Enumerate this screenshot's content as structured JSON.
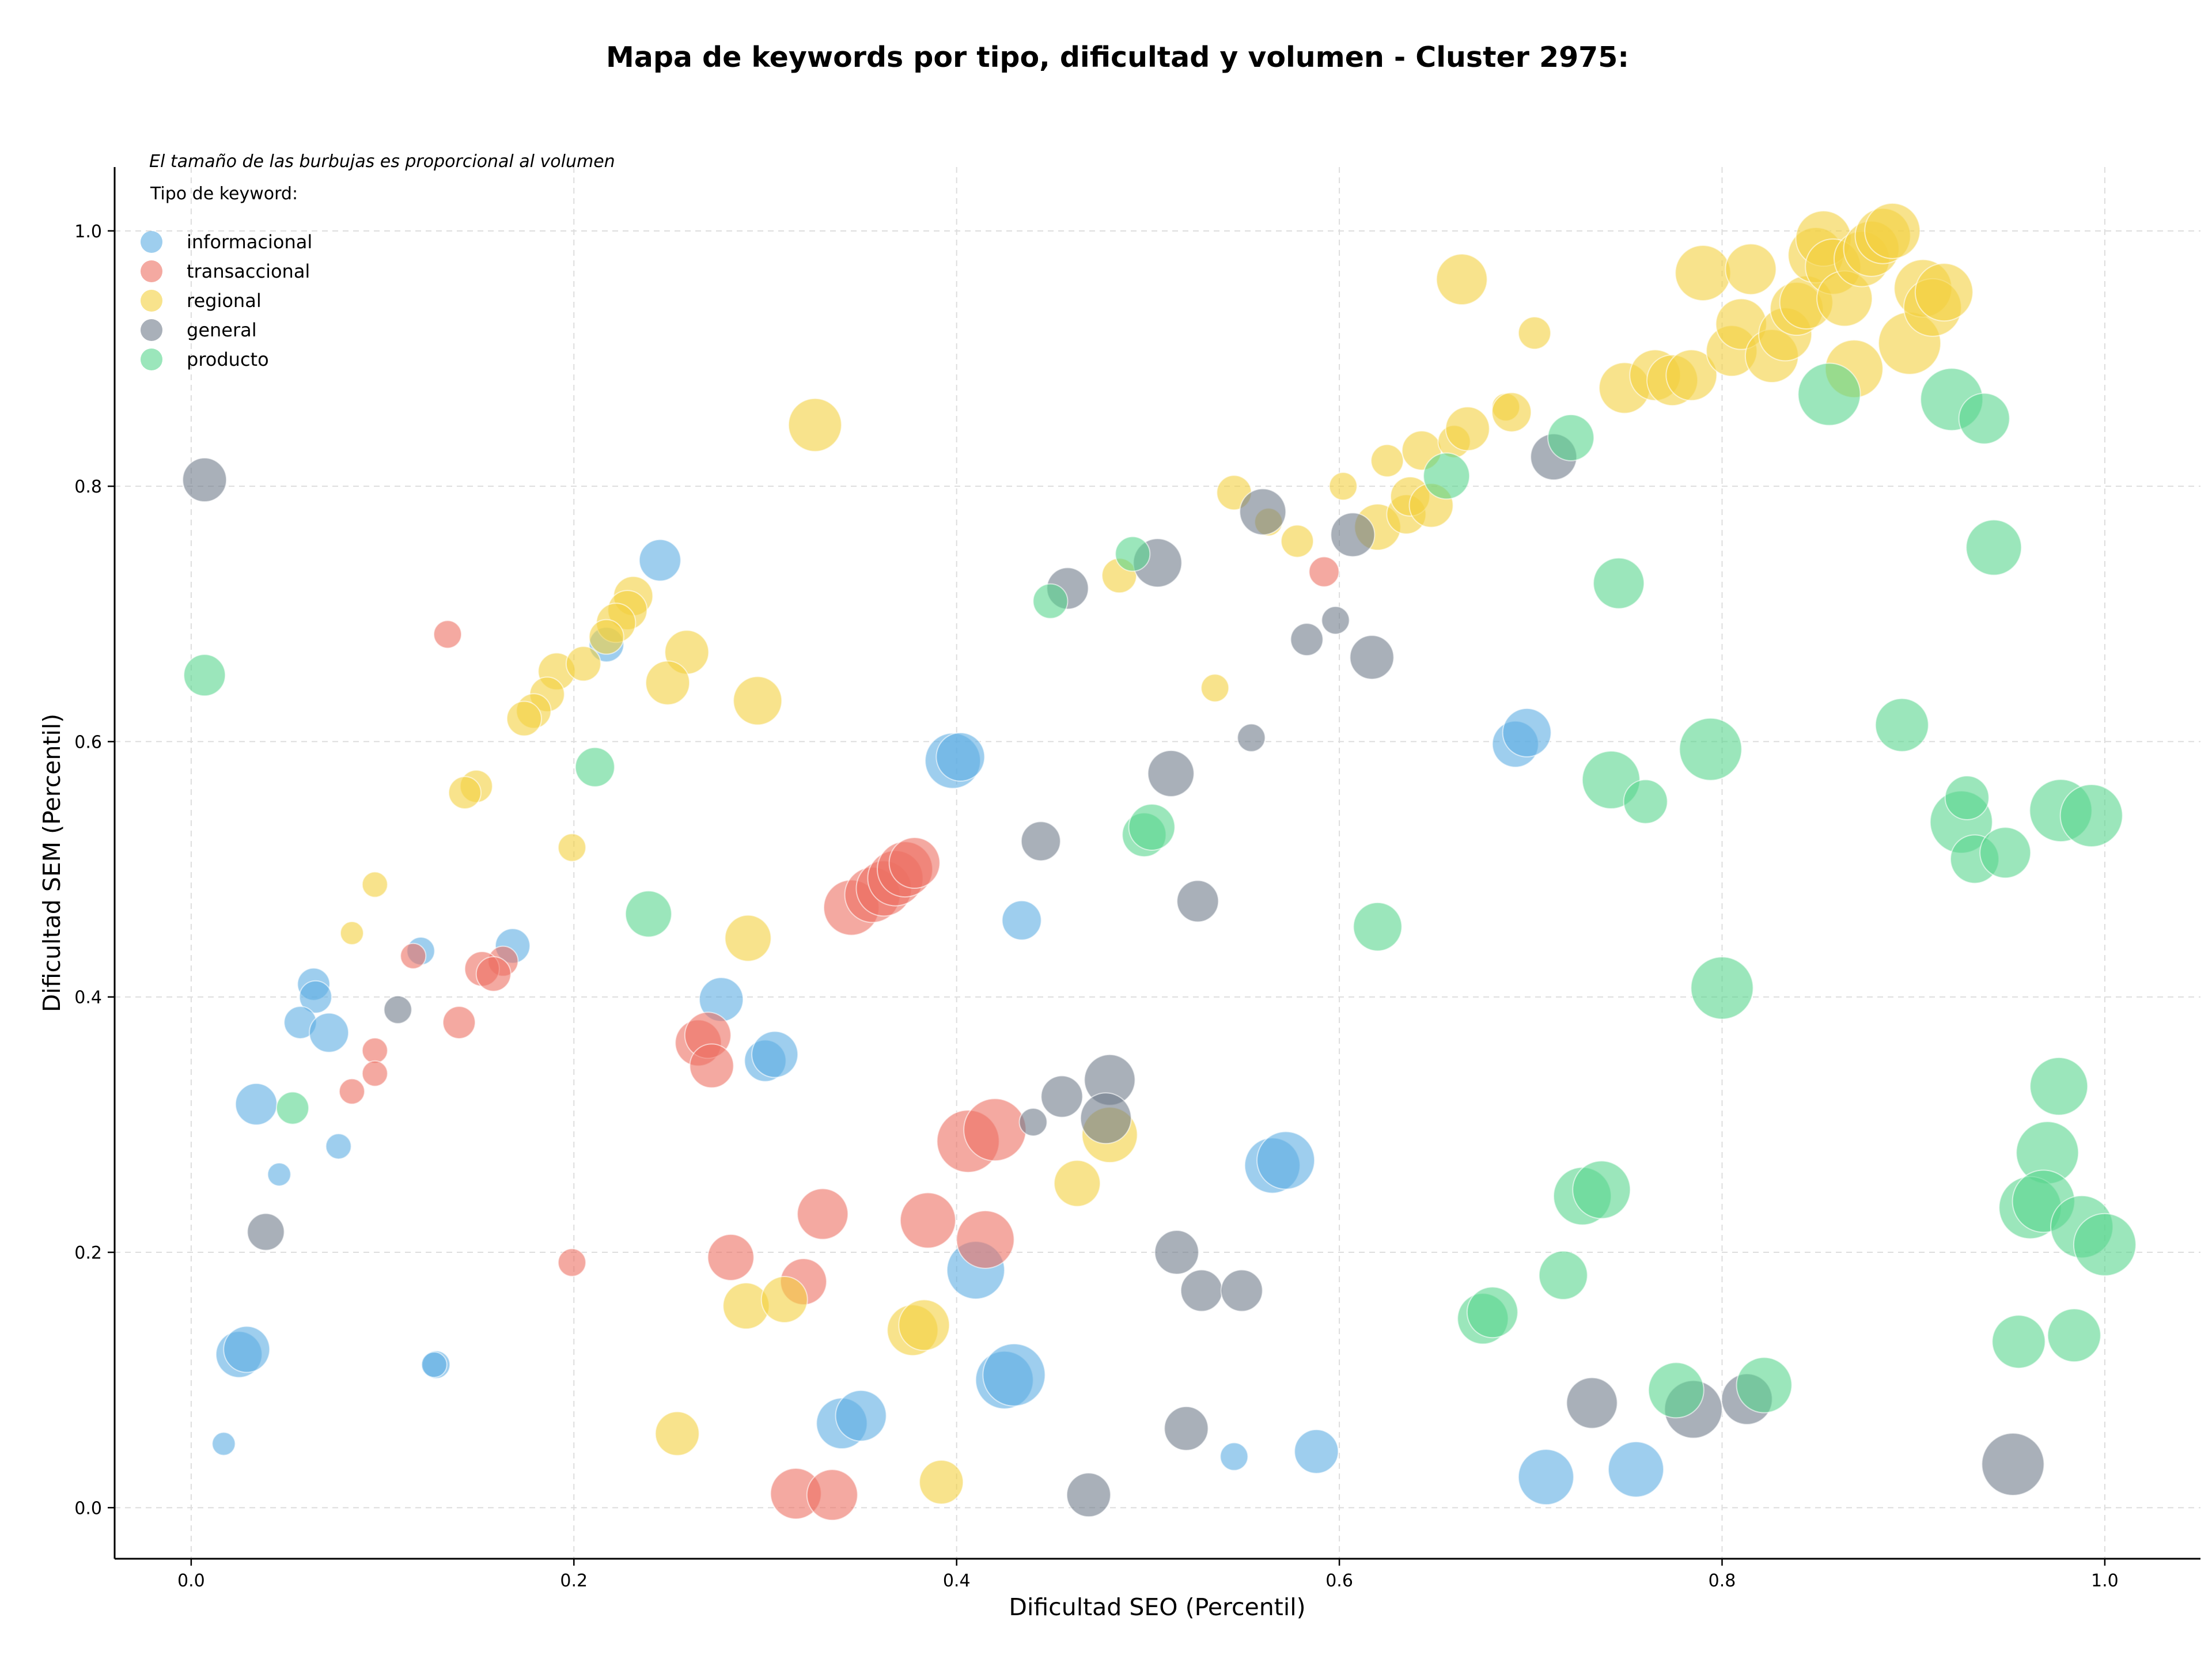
{
  "chart_data": {
    "type": "scatter",
    "title": "Mapa de keywords por tipo, dificultad y volumen - Cluster 2975:",
    "xlabel": "Dificultad SEO (Percentil)",
    "ylabel": "Dificultad SEM (Percentil)",
    "xlim": [
      -0.04,
      1.05
    ],
    "ylim": [
      -0.04,
      1.05
    ],
    "xticks": [
      "0.0",
      "0.2",
      "0.4",
      "0.6",
      "0.8",
      "1.0"
    ],
    "yticks": [
      "0.0",
      "0.2",
      "0.4",
      "0.6",
      "0.8",
      "1.0"
    ],
    "grid": true,
    "legend_position": "top-left",
    "legend_note": "El tamaño de las burbujas es proporcional al volumen",
    "legend_title": "Tipo de keyword:",
    "series": [
      {
        "name": "informacional",
        "color": "#5DADE2",
        "points": [
          [
            0.245,
            0.742,
            36
          ],
          [
            0.217,
            0.676,
            30
          ],
          [
            0.398,
            0.585,
            48
          ],
          [
            0.402,
            0.588,
            42
          ],
          [
            0.692,
            0.598,
            40
          ],
          [
            0.698,
            0.607,
            42
          ],
          [
            0.168,
            0.44,
            30
          ],
          [
            0.12,
            0.436,
            24
          ],
          [
            0.064,
            0.41,
            28
          ],
          [
            0.065,
            0.4,
            28
          ],
          [
            0.057,
            0.38,
            28
          ],
          [
            0.072,
            0.372,
            34
          ],
          [
            0.277,
            0.398,
            38
          ],
          [
            0.3,
            0.35,
            36
          ],
          [
            0.305,
            0.355,
            40
          ],
          [
            0.434,
            0.46,
            34
          ],
          [
            0.034,
            0.316,
            36
          ],
          [
            0.077,
            0.283,
            22
          ],
          [
            0.046,
            0.261,
            20
          ],
          [
            0.41,
            0.186,
            50
          ],
          [
            0.565,
            0.268,
            48
          ],
          [
            0.572,
            0.272,
            50
          ],
          [
            0.025,
            0.12,
            40
          ],
          [
            0.029,
            0.124,
            40
          ],
          [
            0.128,
            0.112,
            24
          ],
          [
            0.127,
            0.112,
            22
          ],
          [
            0.017,
            0.05,
            20
          ],
          [
            0.34,
            0.066,
            44
          ],
          [
            0.35,
            0.072,
            44
          ],
          [
            0.425,
            0.1,
            50
          ],
          [
            0.43,
            0.104,
            54
          ],
          [
            0.545,
            0.04,
            24
          ],
          [
            0.588,
            0.044,
            38
          ],
          [
            0.708,
            0.024,
            48
          ],
          [
            0.755,
            0.03,
            48
          ]
        ]
      },
      {
        "name": "transaccional",
        "color": "#EC7063",
        "points": [
          [
            0.134,
            0.684,
            24
          ],
          [
            0.116,
            0.432,
            22
          ],
          [
            0.163,
            0.428,
            26
          ],
          [
            0.152,
            0.422,
            30
          ],
          [
            0.158,
            0.418,
            30
          ],
          [
            0.14,
            0.38,
            28
          ],
          [
            0.096,
            0.358,
            22
          ],
          [
            0.096,
            0.34,
            22
          ],
          [
            0.084,
            0.326,
            22
          ],
          [
            0.199,
            0.192,
            24
          ],
          [
            0.265,
            0.364,
            40
          ],
          [
            0.27,
            0.37,
            40
          ],
          [
            0.272,
            0.346,
            38
          ],
          [
            0.345,
            0.47,
            48
          ],
          [
            0.356,
            0.48,
            48
          ],
          [
            0.362,
            0.485,
            48
          ],
          [
            0.368,
            0.493,
            48
          ],
          [
            0.373,
            0.5,
            48
          ],
          [
            0.378,
            0.505,
            44
          ],
          [
            0.406,
            0.287,
            54
          ],
          [
            0.42,
            0.296,
            54
          ],
          [
            0.415,
            0.21,
            50
          ],
          [
            0.385,
            0.225,
            48
          ],
          [
            0.33,
            0.23,
            44
          ],
          [
            0.282,
            0.196,
            40
          ],
          [
            0.32,
            0.177,
            40
          ],
          [
            0.316,
            0.011,
            44
          ],
          [
            0.335,
            0.01,
            44
          ],
          [
            0.592,
            0.733,
            26
          ]
        ]
      },
      {
        "name": "regional",
        "color": "#F4D03F",
        "points": [
          [
            0.326,
            0.848,
            46
          ],
          [
            0.231,
            0.714,
            34
          ],
          [
            0.228,
            0.703,
            34
          ],
          [
            0.222,
            0.693,
            34
          ],
          [
            0.217,
            0.682,
            30
          ],
          [
            0.259,
            0.67,
            38
          ],
          [
            0.249,
            0.646,
            38
          ],
          [
            0.296,
            0.632,
            42
          ],
          [
            0.191,
            0.655,
            32
          ],
          [
            0.205,
            0.661,
            30
          ],
          [
            0.186,
            0.637,
            30
          ],
          [
            0.179,
            0.624,
            30
          ],
          [
            0.174,
            0.618,
            30
          ],
          [
            0.149,
            0.565,
            28
          ],
          [
            0.143,
            0.56,
            28
          ],
          [
            0.199,
            0.517,
            24
          ],
          [
            0.096,
            0.488,
            22
          ],
          [
            0.084,
            0.45,
            20
          ],
          [
            0.291,
            0.446,
            40
          ],
          [
            0.48,
            0.292,
            48
          ],
          [
            0.463,
            0.254,
            40
          ],
          [
            0.29,
            0.158,
            40
          ],
          [
            0.31,
            0.163,
            40
          ],
          [
            0.377,
            0.139,
            44
          ],
          [
            0.383,
            0.143,
            44
          ],
          [
            0.254,
            0.058,
            38
          ],
          [
            0.392,
            0.02,
            38
          ],
          [
            0.535,
            0.642,
            24
          ],
          [
            0.545,
            0.795,
            30
          ],
          [
            0.485,
            0.73,
            30
          ],
          [
            0.563,
            0.772,
            24
          ],
          [
            0.578,
            0.757,
            28
          ],
          [
            0.602,
            0.8,
            24
          ],
          [
            0.62,
            0.768,
            40
          ],
          [
            0.625,
            0.82,
            28
          ],
          [
            0.635,
            0.778,
            34
          ],
          [
            0.643,
            0.828,
            34
          ],
          [
            0.637,
            0.792,
            34
          ],
          [
            0.648,
            0.785,
            38
          ],
          [
            0.66,
            0.835,
            28
          ],
          [
            0.667,
            0.845,
            38
          ],
          [
            0.687,
            0.862,
            24
          ],
          [
            0.69,
            0.858,
            34
          ],
          [
            0.702,
            0.92,
            28
          ],
          [
            0.664,
            0.962,
            44
          ],
          [
            0.749,
            0.877,
            44
          ],
          [
            0.765,
            0.887,
            44
          ],
          [
            0.774,
            0.883,
            44
          ],
          [
            0.784,
            0.887,
            44
          ],
          [
            0.79,
            0.967,
            48
          ],
          [
            0.805,
            0.906,
            44
          ],
          [
            0.81,
            0.927,
            44
          ],
          [
            0.815,
            0.97,
            44
          ],
          [
            0.826,
            0.902,
            46
          ],
          [
            0.833,
            0.919,
            46
          ],
          [
            0.839,
            0.939,
            46
          ],
          [
            0.844,
            0.944,
            46
          ],
          [
            0.849,
            0.981,
            48
          ],
          [
            0.853,
            0.994,
            48
          ],
          [
            0.858,
            0.972,
            48
          ],
          [
            0.864,
            0.947,
            48
          ],
          [
            0.869,
            0.892,
            50
          ],
          [
            0.873,
            0.978,
            48
          ],
          [
            0.878,
            0.986,
            48
          ],
          [
            0.884,
            0.996,
            48
          ],
          [
            0.889,
            1.0,
            48
          ],
          [
            0.898,
            0.912,
            54
          ],
          [
            0.905,
            0.955,
            50
          ],
          [
            0.91,
            0.94,
            50
          ],
          [
            0.916,
            0.952,
            50
          ]
        ]
      },
      {
        "name": "general",
        "color": "#707B8A",
        "points": [
          [
            0.007,
            0.805,
            38
          ],
          [
            0.039,
            0.216,
            32
          ],
          [
            0.108,
            0.39,
            24
          ],
          [
            0.458,
            0.72,
            36
          ],
          [
            0.505,
            0.74,
            42
          ],
          [
            0.56,
            0.78,
            40
          ],
          [
            0.607,
            0.762,
            38
          ],
          [
            0.712,
            0.823,
            40
          ],
          [
            0.598,
            0.695,
            24
          ],
          [
            0.583,
            0.68,
            28
          ],
          [
            0.617,
            0.666,
            38
          ],
          [
            0.554,
            0.603,
            24
          ],
          [
            0.512,
            0.575,
            40
          ],
          [
            0.444,
            0.522,
            34
          ],
          [
            0.526,
            0.475,
            36
          ],
          [
            0.44,
            0.302,
            24
          ],
          [
            0.455,
            0.322,
            36
          ],
          [
            0.48,
            0.335,
            44
          ],
          [
            0.478,
            0.305,
            44
          ],
          [
            0.515,
            0.2,
            38
          ],
          [
            0.528,
            0.17,
            36
          ],
          [
            0.549,
            0.17,
            36
          ],
          [
            0.52,
            0.062,
            38
          ],
          [
            0.469,
            0.01,
            38
          ],
          [
            0.732,
            0.082,
            44
          ],
          [
            0.785,
            0.077,
            50
          ],
          [
            0.813,
            0.085,
            44
          ],
          [
            0.952,
            0.034,
            54
          ]
        ]
      },
      {
        "name": "producto",
        "color": "#58D68D",
        "points": [
          [
            0.007,
            0.652,
            36
          ],
          [
            0.053,
            0.313,
            28
          ],
          [
            0.211,
            0.58,
            34
          ],
          [
            0.239,
            0.465,
            40
          ],
          [
            0.449,
            0.71,
            30
          ],
          [
            0.492,
            0.747,
            30
          ],
          [
            0.498,
            0.527,
            38
          ],
          [
            0.502,
            0.533,
            40
          ],
          [
            0.62,
            0.455,
            42
          ],
          [
            0.656,
            0.808,
            40
          ],
          [
            0.721,
            0.838,
            40
          ],
          [
            0.746,
            0.724,
            44
          ],
          [
            0.742,
            0.57,
            50
          ],
          [
            0.76,
            0.553,
            38
          ],
          [
            0.794,
            0.594,
            54
          ],
          [
            0.8,
            0.407,
            54
          ],
          [
            0.856,
            0.872,
            54
          ],
          [
            0.894,
            0.613,
            46
          ],
          [
            0.92,
            0.868,
            54
          ],
          [
            0.937,
            0.853,
            44
          ],
          [
            0.942,
            0.752,
            48
          ],
          [
            0.925,
            0.537,
            54
          ],
          [
            0.928,
            0.556,
            38
          ],
          [
            0.932,
            0.508,
            42
          ],
          [
            0.948,
            0.513,
            44
          ],
          [
            0.977,
            0.546,
            54
          ],
          [
            0.993,
            0.542,
            54
          ],
          [
            0.976,
            0.33,
            50
          ],
          [
            0.97,
            0.278,
            54
          ],
          [
            0.961,
            0.235,
            54
          ],
          [
            0.968,
            0.24,
            54
          ],
          [
            0.988,
            0.22,
            54
          ],
          [
            1.0,
            0.206,
            54
          ],
          [
            0.955,
            0.13,
            46
          ],
          [
            0.984,
            0.135,
            46
          ],
          [
            0.727,
            0.244,
            50
          ],
          [
            0.737,
            0.249,
            50
          ],
          [
            0.717,
            0.182,
            42
          ],
          [
            0.675,
            0.148,
            44
          ],
          [
            0.68,
            0.153,
            44
          ],
          [
            0.776,
            0.092,
            48
          ],
          [
            0.822,
            0.096,
            48
          ]
        ]
      }
    ]
  }
}
